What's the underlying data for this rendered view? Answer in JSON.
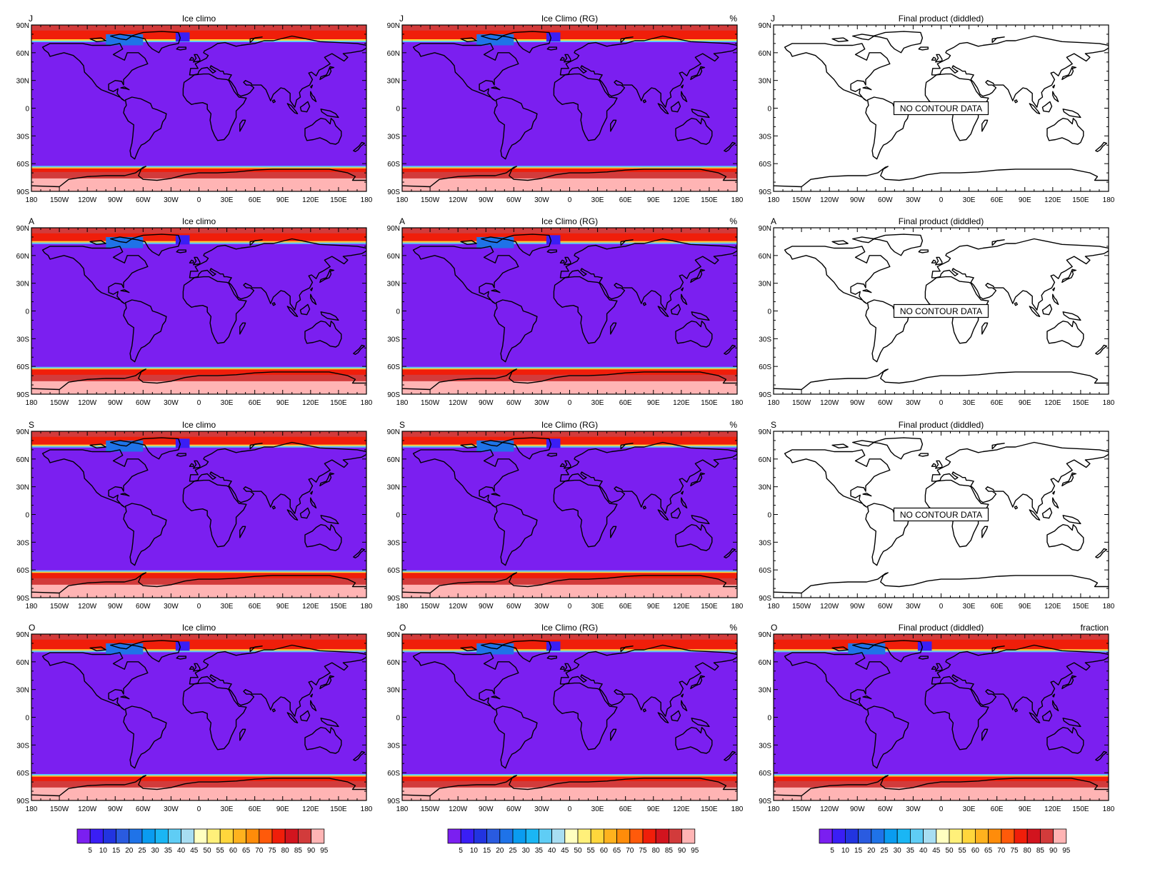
{
  "figure": {
    "columns": [
      {
        "title": "Ice climo",
        "unit": ""
      },
      {
        "title": "Ice Climo (RG)",
        "unit": "%"
      },
      {
        "title": "Final product (diddled)",
        "unit": ""
      }
    ],
    "months": [
      "J",
      "A",
      "S",
      "O"
    ],
    "bottom_right_unit": "fraction",
    "no_data_text": "NO CONTOUR DATA",
    "lat_ticks": [
      "90N",
      "60N",
      "30N",
      "0",
      "30S",
      "60S",
      "90S"
    ],
    "lon_ticks": [
      "180",
      "150W",
      "120W",
      "90W",
      "60W",
      "30W",
      "0",
      "30E",
      "60E",
      "90E",
      "120E",
      "150E",
      "180"
    ],
    "colorbar": {
      "labels": [
        "5",
        "10",
        "15",
        "20",
        "25",
        "30",
        "35",
        "40",
        "45",
        "50",
        "55",
        "60",
        "65",
        "70",
        "75",
        "80",
        "85",
        "90",
        "95"
      ],
      "colors": [
        "#7b1ff0",
        "#3a1ef5",
        "#2234e0",
        "#2a5be0",
        "#1f73e8",
        "#0a9cf0",
        "#1ab6f4",
        "#5fcdf5",
        "#a8def2",
        "#ffffc0",
        "#fff07a",
        "#ffd63c",
        "#ffb21e",
        "#ff8c0a",
        "#ff5a0a",
        "#f01e0a",
        "#d2141e",
        "#d23b3b",
        "#ffb4b4"
      ]
    },
    "map_colors": {
      "ocean": "#7b1ff0",
      "ice_high": "#d23b3b",
      "ice_max": "#ffb4b4",
      "ice_mid": "#f01e0a",
      "edge_blue": "#1f73e8",
      "edge_cyan": "#5fcdf5",
      "edge_yellow": "#ffd63c",
      "coast": "#000000"
    }
  },
  "chart_data": {
    "type": "heatmap",
    "title": "",
    "panels_rows": [
      "J",
      "A",
      "S",
      "O"
    ],
    "panels_cols": [
      "Ice climo",
      "Ice Climo (RG)",
      "Final product (diddled)"
    ],
    "xlim": [
      -180,
      180
    ],
    "ylim": [
      -90,
      90
    ],
    "colorbar_levels": [
      5,
      10,
      15,
      20,
      25,
      30,
      35,
      40,
      45,
      50,
      55,
      60,
      65,
      70,
      75,
      80,
      85,
      90,
      95
    ],
    "empty_panels": [
      "J/Final product (diddled)",
      "A/Final product (diddled)",
      "S/Final product (diddled)"
    ],
    "grid": false
  }
}
